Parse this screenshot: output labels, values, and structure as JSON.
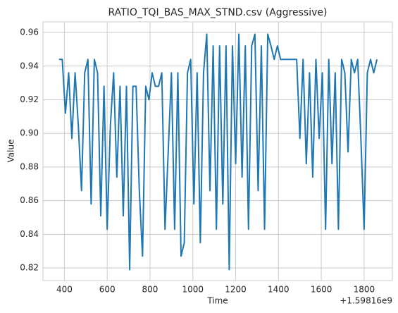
{
  "chart_data": {
    "type": "line",
    "title": "RATIO_TQI_BAS_MAX_STND.csv (Aggressive)",
    "x_label": "Time",
    "y_label": "Value",
    "x_offset": "+1.59816e9",
    "x": [
      375,
      390,
      405,
      420,
      435,
      450,
      465,
      480,
      495,
      510,
      525,
      540,
      555,
      570,
      585,
      600,
      615,
      630,
      645,
      660,
      675,
      690,
      705,
      720,
      735,
      750,
      765,
      780,
      795,
      810,
      825,
      840,
      855,
      870,
      885,
      900,
      915,
      930,
      945,
      960,
      975,
      990,
      1005,
      1020,
      1035,
      1050,
      1065,
      1080,
      1095,
      1110,
      1125,
      1140,
      1155,
      1170,
      1185,
      1200,
      1215,
      1230,
      1245,
      1260,
      1275,
      1290,
      1305,
      1320,
      1335,
      1350,
      1365,
      1380,
      1395,
      1410,
      1425,
      1440,
      1455,
      1470,
      1485,
      1500,
      1515,
      1530,
      1545,
      1560,
      1575,
      1590,
      1605,
      1620,
      1635,
      1650,
      1665,
      1680,
      1695,
      1710,
      1725,
      1740,
      1755,
      1770,
      1785,
      1800,
      1815,
      1830,
      1845,
      1860
    ],
    "series": [
      {
        "name": "Value",
        "color": "#1f77b4",
        "values": [
          0.944,
          0.944,
          0.912,
          0.936,
          0.897,
          0.936,
          0.905,
          0.866,
          0.936,
          0.944,
          0.858,
          0.944,
          0.936,
          0.851,
          0.928,
          0.843,
          0.905,
          0.936,
          0.874,
          0.928,
          0.851,
          0.928,
          0.819,
          0.928,
          0.928,
          0.866,
          0.827,
          0.928,
          0.92,
          0.936,
          0.928,
          0.928,
          0.936,
          0.843,
          0.889,
          0.936,
          0.843,
          0.936,
          0.827,
          0.835,
          0.936,
          0.944,
          0.858,
          0.936,
          0.835,
          0.936,
          0.959,
          0.866,
          0.952,
          0.843,
          0.952,
          0.858,
          0.952,
          0.819,
          0.952,
          0.882,
          0.959,
          0.874,
          0.952,
          0.843,
          0.952,
          0.959,
          0.866,
          0.952,
          0.843,
          0.959,
          0.952,
          0.944,
          0.952,
          0.944,
          0.944,
          0.944,
          0.944,
          0.944,
          0.944,
          0.897,
          0.944,
          0.882,
          0.936,
          0.874,
          0.944,
          0.897,
          0.936,
          0.843,
          0.944,
          0.882,
          0.936,
          0.843,
          0.944,
          0.936,
          0.889,
          0.944,
          0.936,
          0.944,
          0.897,
          0.843,
          0.936,
          0.944,
          0.936,
          0.944
        ]
      }
    ],
    "xlim": [
      300,
      1932
    ],
    "ylim": [
      0.8125,
      0.9663
    ],
    "xticks": [
      400,
      600,
      800,
      1000,
      1200,
      1400,
      1600,
      1800
    ],
    "yticks": [
      0.82,
      0.84,
      0.86,
      0.88,
      {
        "value": 0.9,
        "label": "0.90"
      },
      0.92,
      0.94,
      0.96
    ],
    "grid": true
  }
}
